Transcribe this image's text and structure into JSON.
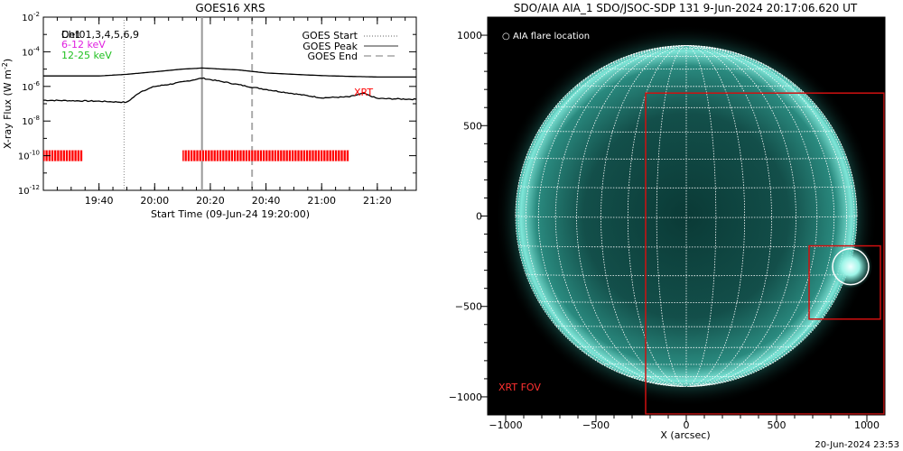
{
  "goes_panel": {
    "title": "GOES16 XRS",
    "ylabel": "X-ray Flux (W m",
    "ylabel_sup": "-2",
    "ylabel_end": ")",
    "xlabel": "Start Time (09-Jun-24 19:20:00)",
    "legend_left": [
      {
        "text": "Det01,3,4,5,6,9",
        "color": "#000000"
      },
      {
        "text": "6-12 keV",
        "color": "#e020e0"
      },
      {
        "text": "12-25 keV",
        "color": "#20c020"
      }
    ],
    "legend_overlap_text": "Ch1",
    "legend_right": [
      {
        "text": "GOES Start",
        "style": "dotted"
      },
      {
        "text": "GOES Peak",
        "style": "solid"
      },
      {
        "text": "GOES End",
        "style": "dashed"
      }
    ],
    "xrt_label": "XRT",
    "ytick_base": "10",
    "colors": {
      "goes_curve": "#000000",
      "xrt_bar": "#ff0000",
      "xrt_text": "#ff0000",
      "peak_line": "#999999",
      "end_line": "#aaaaaa",
      "start_line": "#888888"
    }
  },
  "aia_panel": {
    "title": "SDO/AIA AIA_1 SDO/JSOC-SDP 131  9-Jun-2024 20:17:06.620 UT",
    "legend_symbol": "○",
    "legend_text": "AIA flare location",
    "fov_label": "XRT FOV",
    "xlabel": "X (arcsec)",
    "colors": {
      "sun_inner": "#0f4b47",
      "sun_rim": "#5fd9c8",
      "grid": "#ffffff",
      "fov_box": "#d01010",
      "fov_text": "#ff3030"
    }
  },
  "footer": {
    "timestamp": "20-Jun-2024 23:53"
  },
  "chart_data": [
    {
      "type": "line",
      "title": "GOES16 XRS",
      "xlabel": "Start Time (09-Jun-24 19:20:00)",
      "ylabel": "X-ray Flux (W m-2)",
      "yscale": "log",
      "xlim": [
        "19:20",
        "21:34"
      ],
      "ylim": [
        1e-12,
        0.01
      ],
      "x_ticks": [
        "19:40",
        "20:00",
        "20:20",
        "20:40",
        "21:00",
        "21:20"
      ],
      "y_ticks": [
        1e-12,
        1e-10,
        1e-08,
        1e-06,
        0.0001,
        0.01
      ],
      "y_tick_exponents": [
        "-12",
        "-10",
        "-8",
        "-6",
        "-4",
        "-2"
      ],
      "series": [
        {
          "x": [
            "19:20",
            "19:30",
            "19:40",
            "19:50",
            "20:00",
            "20:10",
            "20:17",
            "20:30",
            "20:40",
            "20:50",
            "21:00",
            "21:10",
            "21:20",
            "21:34"
          ],
          "values": [
            4e-06,
            4e-06,
            4e-06,
            5e-06,
            7e-06,
            1e-05,
            1.15e-05,
            9e-06,
            6e-06,
            5e-06,
            4.2e-06,
            3.8e-06,
            3.5e-06,
            3.5e-06
          ]
        },
        {
          "x": [
            "19:20",
            "19:30",
            "19:40",
            "19:50",
            "19:55",
            "20:00",
            "20:05",
            "20:10",
            "20:17",
            "20:25",
            "20:35",
            "20:45",
            "21:00",
            "21:10",
            "21:15",
            "21:20",
            "21:34"
          ],
          "values": [
            1.6e-07,
            1.5e-07,
            1.4e-07,
            1.2e-07,
            5e-07,
            1e-06,
            1.3e-06,
            1.8e-06,
            3e-06,
            1.8e-06,
            9e-07,
            5e-07,
            2.2e-07,
            2.5e-07,
            4e-07,
            2e-07,
            1.8e-07
          ]
        }
      ],
      "vertical_lines": [
        {
          "label": "GOES Start",
          "x": "19:49",
          "style": "dotted"
        },
        {
          "label": "GOES Peak",
          "x": "20:17",
          "style": "solid"
        },
        {
          "label": "GOES End",
          "x": "20:35",
          "style": "dashed"
        }
      ],
      "xrt_coverage": [
        [
          "19:20",
          "19:34"
        ],
        [
          "20:10",
          "21:10"
        ]
      ],
      "grid": false
    },
    {
      "type": "heatmap",
      "title": "SDO/AIA AIA_1 SDO/JSOC-SDP 131  9-Jun-2024 20:17:06.620 UT",
      "xlabel": "X (arcsec)",
      "xlim": [
        -1100,
        1100
      ],
      "ylim": [
        -1100,
        1100
      ],
      "x_ticks": [
        -1000,
        -500,
        0,
        500,
        1000
      ],
      "y_ticks": [
        -1000,
        -500,
        0,
        500,
        1000
      ],
      "solar_radius": 945,
      "flare_location": [
        910,
        -280
      ],
      "xrt_fov": {
        "x": [
          -225,
          1100
        ],
        "y": [
          -1100,
          680
        ]
      },
      "zoom_box": {
        "x": [
          680,
          1075
        ],
        "y": [
          -570,
          -165
        ]
      },
      "grid_spacing_deg": 10
    }
  ]
}
